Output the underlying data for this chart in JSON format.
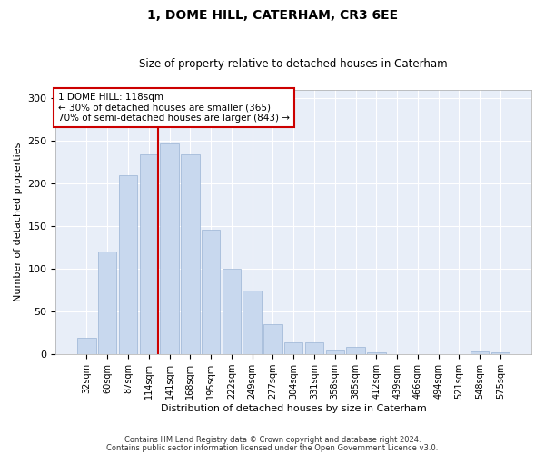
{
  "title": "1, DOME HILL, CATERHAM, CR3 6EE",
  "subtitle": "Size of property relative to detached houses in Caterham",
  "xlabel": "Distribution of detached houses by size in Caterham",
  "ylabel": "Number of detached properties",
  "bar_color": "#c8d8ee",
  "bar_edgecolor": "#9ab4d4",
  "background_color": "#e8eef8",
  "grid_color": "#ffffff",
  "fig_facecolor": "#ffffff",
  "categories": [
    "32sqm",
    "60sqm",
    "87sqm",
    "114sqm",
    "141sqm",
    "168sqm",
    "195sqm",
    "222sqm",
    "249sqm",
    "277sqm",
    "304sqm",
    "331sqm",
    "358sqm",
    "385sqm",
    "412sqm",
    "439sqm",
    "466sqm",
    "494sqm",
    "521sqm",
    "548sqm",
    "575sqm"
  ],
  "values": [
    19,
    120,
    210,
    234,
    247,
    234,
    146,
    100,
    75,
    35,
    14,
    14,
    5,
    9,
    2,
    0,
    0,
    0,
    0,
    3,
    2
  ],
  "ylim": [
    0,
    310
  ],
  "yticks": [
    0,
    50,
    100,
    150,
    200,
    250,
    300
  ],
  "property_line_label": "1 DOME HILL: 118sqm",
  "annotation_line1": "← 30% of detached houses are smaller (365)",
  "annotation_line2": "70% of semi-detached houses are larger (843) →",
  "annotation_box_facecolor": "#ffffff",
  "annotation_box_edgecolor": "#cc0000",
  "property_line_color": "#cc0000",
  "property_line_bar_index": 3,
  "title_fontsize": 10,
  "subtitle_fontsize": 8.5,
  "footnote1": "Contains HM Land Registry data © Crown copyright and database right 2024.",
  "footnote2": "Contains public sector information licensed under the Open Government Licence v3.0."
}
